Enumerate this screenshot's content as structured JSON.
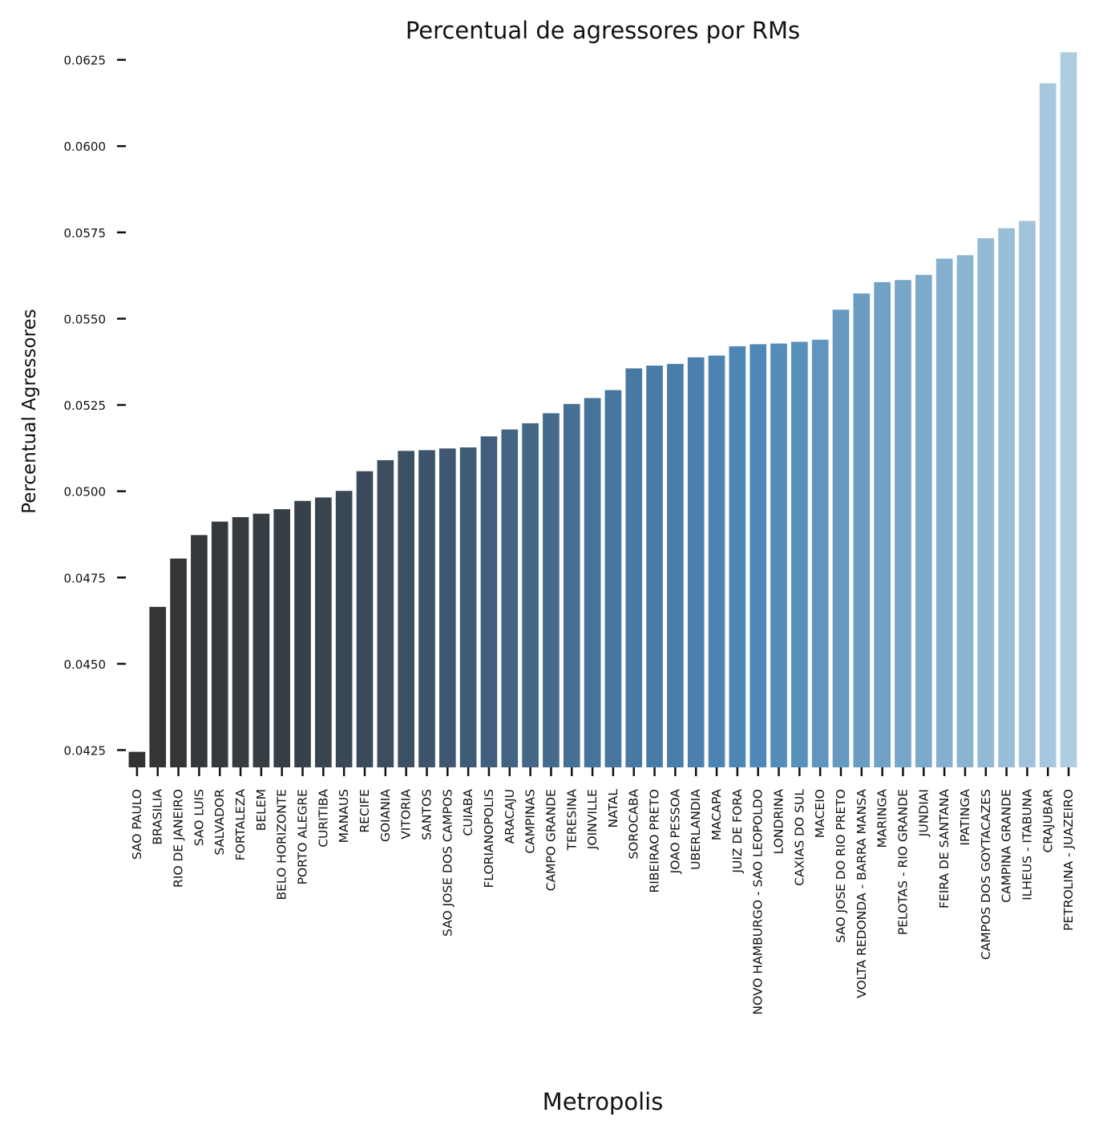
{
  "chart_data": {
    "type": "bar",
    "title": "Percentual de agressores por RMs",
    "xlabel": "Metropolis",
    "ylabel": "Percentual Agressores",
    "ylim": [
      0.042,
      0.0627
    ],
    "yticks": [
      "0.0425",
      "0.0450",
      "0.0475",
      "0.0500",
      "0.0525",
      "0.0550",
      "0.0575",
      "0.0600",
      "0.0625"
    ],
    "ytick_values": [
      0.0425,
      0.045,
      0.0475,
      0.05,
      0.0525,
      0.055,
      0.0575,
      0.06,
      0.0625
    ],
    "grid": false,
    "palette": [
      "#333333",
      "#373f47",
      "#3f5770",
      "#46759c",
      "#4e88b8",
      "#79a8c9",
      "#aecce2"
    ],
    "categories": [
      "SAO PAULO",
      "BRASILIA",
      "RIO DE JANEIRO",
      "SAO LUIS",
      "SALVADOR",
      "FORTALEZA",
      "BELEM",
      "BELO HORIZONTE",
      "PORTO ALEGRE",
      "CURITIBA",
      "MANAUS",
      "RECIFE",
      "GOIANIA",
      "VITORIA",
      "SANTOS",
      "SAO JOSE DOS CAMPOS",
      "CUIABA",
      "FLORIANOPOLIS",
      "ARACAJU",
      "CAMPINAS",
      "CAMPO GRANDE",
      "TERESINA",
      "JOINVILLE",
      "NATAL",
      "SOROCABA",
      "RIBEIRAO PRETO",
      "JOAO PESSOA",
      "UBERLANDIA",
      "MACAPA",
      "JUIZ DE FORA",
      "NOVO HAMBURGO - SAO LEOPOLDO",
      "LONDRINA",
      "CAXIAS DO SUL",
      "MACEIO",
      "SAO JOSE DO RIO PRETO",
      "VOLTA REDONDA - BARRA MANSA",
      "MARINGA",
      "PELOTAS - RIO GRANDE",
      "JUNDIAI",
      "FEIRA DE SANTANA",
      "IPATINGA",
      "CAMPOS DOS GOYTACAZES",
      "CAMPINA GRANDE",
      "ILHEUS - ITABUNA",
      "CRAJUBAR",
      "PETROLINA - JUAZEIRO"
    ],
    "values": [
      0.04245,
      0.04665,
      0.04805,
      0.04873,
      0.04912,
      0.04925,
      0.04935,
      0.04948,
      0.04972,
      0.04982,
      0.05001,
      0.05058,
      0.0509,
      0.05117,
      0.05119,
      0.05124,
      0.05127,
      0.05159,
      0.05179,
      0.05197,
      0.05226,
      0.05253,
      0.0527,
      0.05293,
      0.05356,
      0.05364,
      0.05369,
      0.05388,
      0.05393,
      0.0542,
      0.05426,
      0.05428,
      0.05433,
      0.05439,
      0.05526,
      0.05573,
      0.05606,
      0.05612,
      0.05627,
      0.05674,
      0.05684,
      0.05733,
      0.05762,
      0.05783,
      0.06182,
      0.06272
    ]
  }
}
